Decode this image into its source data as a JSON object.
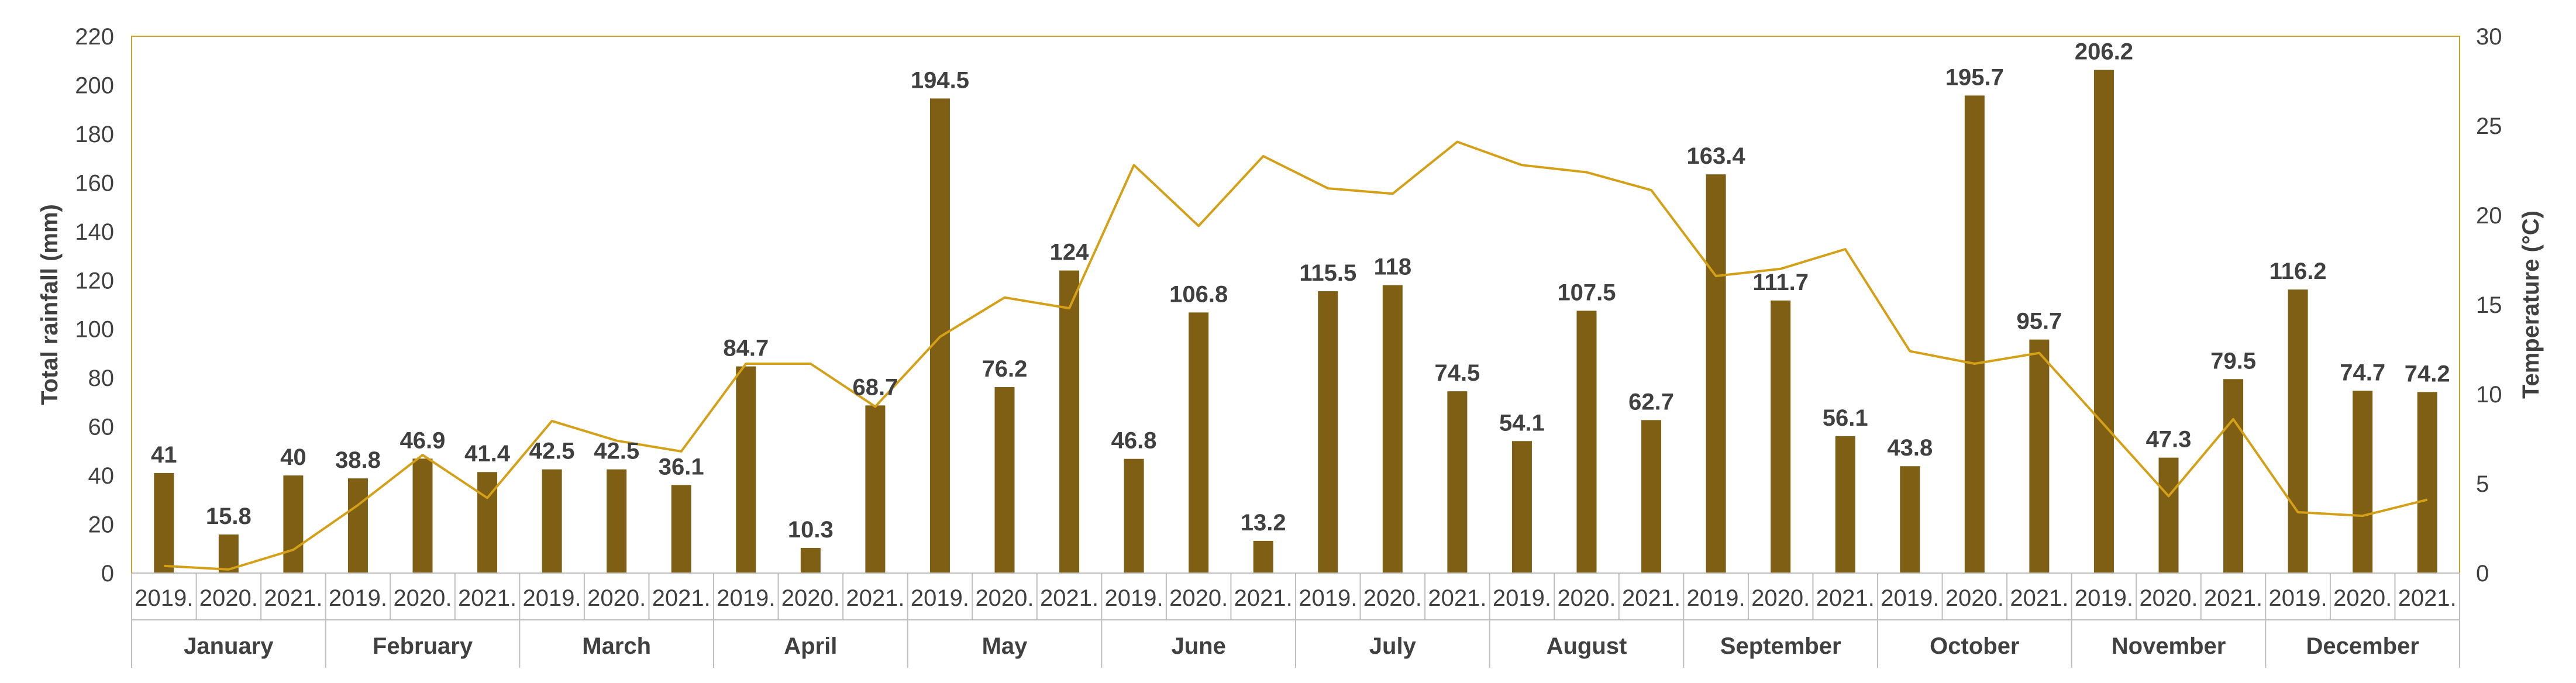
{
  "chart_data": {
    "type": "bar+line",
    "title": "",
    "months": [
      "January",
      "February",
      "March",
      "April",
      "May",
      "June",
      "July",
      "August",
      "September",
      "October",
      "November",
      "December"
    ],
    "years": [
      "2019.",
      "2020.",
      "2021."
    ],
    "series": [
      {
        "name": "Total rainfall (mm)",
        "type": "bar",
        "axis": "left",
        "color": "#7f5f14",
        "values": [
          41,
          15.8,
          40,
          38.8,
          46.9,
          41.4,
          42.5,
          42.5,
          36.1,
          84.7,
          10.3,
          68.7,
          194.5,
          76.2,
          124,
          46.8,
          106.8,
          13.2,
          115.5,
          118,
          74.5,
          54.1,
          107.5,
          62.7,
          163.4,
          111.7,
          56.1,
          43.8,
          195.7,
          95.7,
          206.2,
          47.3,
          79.5,
          116.2,
          74.7,
          74.2
        ]
      },
      {
        "name": "Temperature (°C)",
        "type": "line",
        "axis": "right",
        "color": "#d4a017",
        "values": [
          0.4,
          0.2,
          1.3,
          3.8,
          6.6,
          4.2,
          8.5,
          7.4,
          6.8,
          11.7,
          11.7,
          9.3,
          13.2,
          15.4,
          14.8,
          22.8,
          19.4,
          23.3,
          21.5,
          21.2,
          24.1,
          22.8,
          22.4,
          21.4,
          16.6,
          17.0,
          18.1,
          12.4,
          11.7,
          12.3,
          8.3,
          4.3,
          8.6,
          3.4,
          3.2,
          4.1
        ]
      }
    ],
    "ylabel": "Total rainfall (mm)",
    "ylabel_right": "Temperature (°C)",
    "ylim": [
      0,
      220
    ],
    "yticks": [
      0,
      20,
      40,
      60,
      80,
      100,
      120,
      140,
      160,
      180,
      200,
      220
    ],
    "ylim_right": [
      0,
      30
    ],
    "yticks_right": [
      0,
      5,
      10,
      15,
      20,
      25,
      30
    ],
    "legend": "none",
    "grid": false
  }
}
